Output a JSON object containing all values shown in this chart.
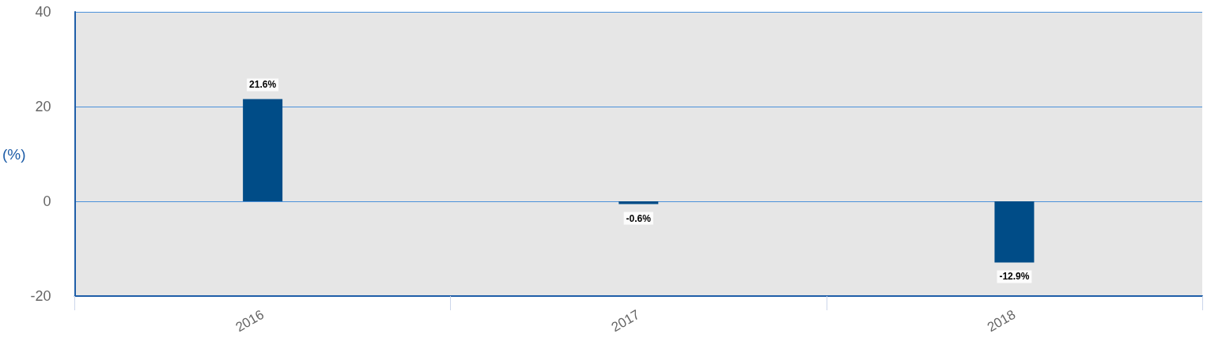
{
  "chart_data": {
    "type": "bar",
    "ylabel": "(%)",
    "categories": [
      "2016",
      "2017",
      "2018"
    ],
    "series": [
      {
        "color": "#004c87",
        "values": [
          21.6,
          -0.6,
          -12.9
        ],
        "value_labels": [
          "21.6%",
          "-0.6%",
          "-12.9%"
        ]
      }
    ],
    "ylim": [
      -20,
      40
    ],
    "yticks": [
      -20,
      0,
      20,
      40
    ],
    "grid": "y"
  }
}
